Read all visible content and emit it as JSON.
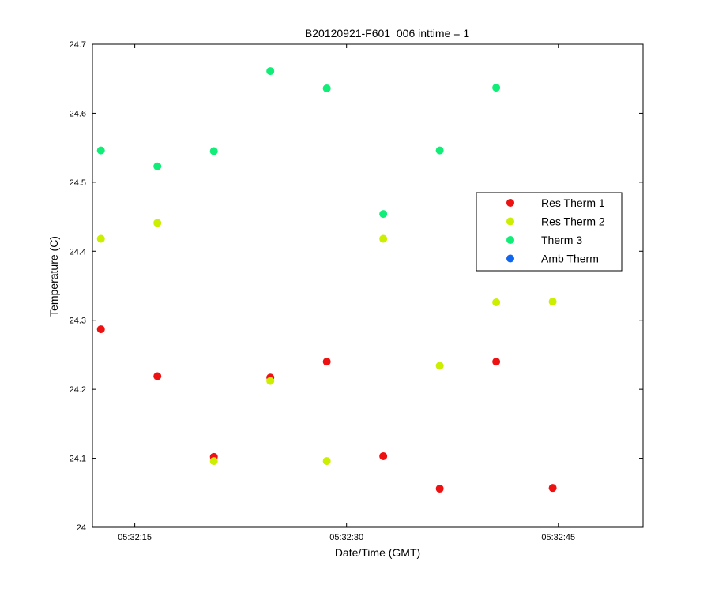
{
  "chart_data": {
    "type": "scatter",
    "title": "B20120921-F601_006 inttime = 1",
    "xlabel": "Date/Time (GMT)",
    "ylabel": "Temperature (C)",
    "x_unit": "time-of-day",
    "xlim": [
      "05:32:12",
      "05:32:51"
    ],
    "ylim": [
      24,
      24.7
    ],
    "x_ticks": [
      {
        "value": "05:32:15",
        "label": "05:32:15"
      },
      {
        "value": "05:32:30",
        "label": "05:32:30"
      },
      {
        "value": "05:32:45",
        "label": "05:32:45"
      }
    ],
    "y_ticks": [
      {
        "value": 24.0,
        "label": "24"
      },
      {
        "value": 24.1,
        "label": "24.1"
      },
      {
        "value": 24.2,
        "label": "24.2"
      },
      {
        "value": 24.3,
        "label": "24.3"
      },
      {
        "value": 24.4,
        "label": "24.4"
      },
      {
        "value": 24.5,
        "label": "24.5"
      },
      {
        "value": 24.6,
        "label": "24.6"
      },
      {
        "value": 24.7,
        "label": "24.7"
      }
    ],
    "grid": false,
    "legend_position": "right",
    "series": [
      {
        "name": "Res Therm 1",
        "color": "#ee1111",
        "points": [
          {
            "x": "05:32:12.6",
            "y": 24.287
          },
          {
            "x": "05:32:16.6",
            "y": 24.219
          },
          {
            "x": "05:32:20.6",
            "y": 24.102
          },
          {
            "x": "05:32:24.6",
            "y": 24.217
          },
          {
            "x": "05:32:28.6",
            "y": 24.24
          },
          {
            "x": "05:32:32.6",
            "y": 24.103
          },
          {
            "x": "05:32:36.6",
            "y": 24.056
          },
          {
            "x": "05:32:40.6",
            "y": 24.24
          },
          {
            "x": "05:32:44.6",
            "y": 24.057
          }
        ]
      },
      {
        "name": "Res Therm 2",
        "color": "#ccee00",
        "points": [
          {
            "x": "05:32:12.6",
            "y": 24.418
          },
          {
            "x": "05:32:16.6",
            "y": 24.441
          },
          {
            "x": "05:32:20.6",
            "y": 24.096
          },
          {
            "x": "05:32:24.6",
            "y": 24.212
          },
          {
            "x": "05:32:28.6",
            "y": 24.096
          },
          {
            "x": "05:32:32.6",
            "y": 24.418
          },
          {
            "x": "05:32:36.6",
            "y": 24.234
          },
          {
            "x": "05:32:40.6",
            "y": 24.326
          },
          {
            "x": "05:32:44.6",
            "y": 24.327
          }
        ]
      },
      {
        "name": "Therm 3",
        "color": "#11ee77",
        "points": [
          {
            "x": "05:32:12.6",
            "y": 24.546
          },
          {
            "x": "05:32:16.6",
            "y": 24.523
          },
          {
            "x": "05:32:20.6",
            "y": 24.545
          },
          {
            "x": "05:32:24.6",
            "y": 24.661
          },
          {
            "x": "05:32:28.6",
            "y": 24.636
          },
          {
            "x": "05:32:32.6",
            "y": 24.454
          },
          {
            "x": "05:32:36.6",
            "y": 24.546
          },
          {
            "x": "05:32:40.6",
            "y": 24.637
          }
        ]
      },
      {
        "name": "Amb Therm",
        "color": "#1166ee",
        "points": []
      }
    ]
  }
}
